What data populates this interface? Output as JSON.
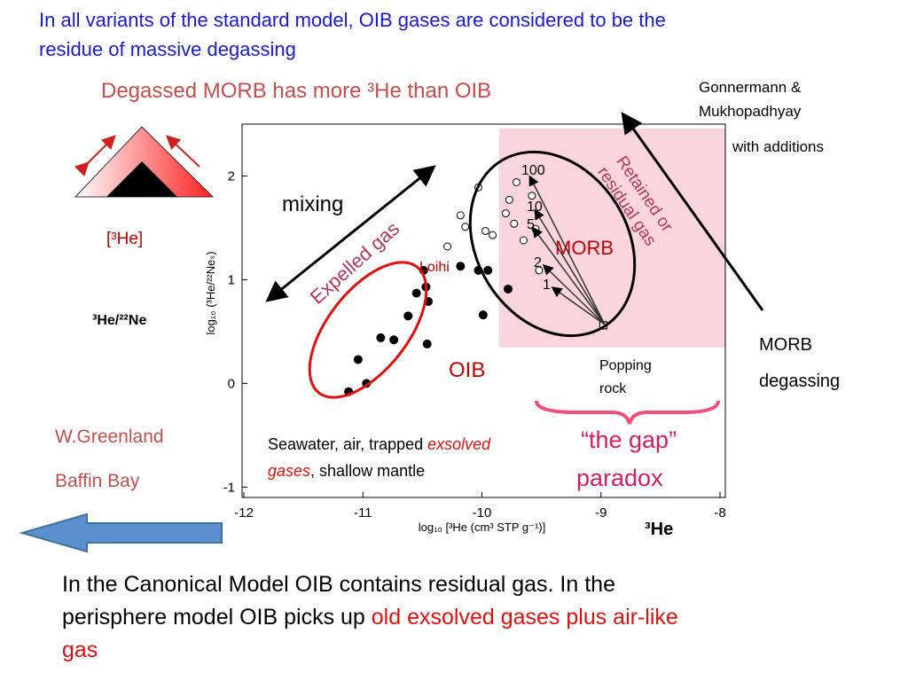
{
  "header": {
    "title_lines": [
      "In all variants of the standard model, OIB gases are considered to be the",
      "residue of massive degassing"
    ],
    "heading": "Degassed MORB has more ³He than OIB",
    "citation": [
      "Gonnermann &",
      "Mukhopadhyay"
    ],
    "citation_note": "with additions"
  },
  "icon": {
    "x_label": "[³He]",
    "y_label": "³He/²²Ne"
  },
  "annotations": {
    "mixing": "mixing",
    "expelled": "Expelled gas",
    "retained": [
      "Retained or",
      "residual gas"
    ],
    "morb": "MORB",
    "loihi": "Loihi",
    "oib": "OIB",
    "popping_rock": [
      "Popping",
      "rock"
    ],
    "morb_degassing": [
      "MORB",
      "degassing"
    ],
    "locations": [
      "W.Greenland",
      "Baffin Bay"
    ],
    "sources": {
      "line1": [
        "Seawater, air, trapped ",
        "exsolved"
      ],
      "line2": [
        "gases",
        ", shallow mantle"
      ]
    },
    "gap": [
      "“the gap”",
      "paradox"
    ],
    "he3": "³He"
  },
  "chart_data": {
    "type": "scatter",
    "xlabel": "log₁₀ [³He (cm³ STP g⁻¹)]",
    "ylabel": "log₁₀ (³He/²²Neₛ)",
    "xlim": [
      -12,
      -8
    ],
    "ylim": [
      -1.1,
      2.5
    ],
    "xticks": [
      -12,
      -11,
      -10,
      -9,
      -8
    ],
    "yticks": [
      -1,
      0,
      1,
      2
    ],
    "series": [
      {
        "marker": "filled",
        "color": "#000000",
        "x": [
          -11.12,
          -11.04,
          -10.97,
          -10.85,
          -10.74,
          -10.62,
          -10.55,
          -10.47,
          -10.45,
          -10.49,
          -10.46,
          -10.18,
          -10.03,
          -9.99,
          -9.95,
          -9.78
        ],
        "values": [
          -0.08,
          0.23,
          0.0,
          0.44,
          0.42,
          0.65,
          0.87,
          0.93,
          0.79,
          1.09,
          0.38,
          1.13,
          1.09,
          0.66,
          1.09,
          0.91
        ]
      },
      {
        "marker": "open",
        "color": "#000000",
        "x": [
          -10.29,
          -10.18,
          -10.03,
          -9.91,
          -9.8,
          -9.73,
          -9.77,
          -9.71,
          -9.58,
          -9.55,
          -9.65,
          -9.52,
          -9.97,
          -10.14
        ],
        "values": [
          1.32,
          1.62,
          1.89,
          1.43,
          1.64,
          1.54,
          1.77,
          1.94,
          1.81,
          1.49,
          1.38,
          1.09,
          1.47,
          1.51
        ]
      },
      {
        "marker": "square",
        "color": "#000000",
        "x": [
          -8.98
        ],
        "values": [
          0.56
        ]
      }
    ],
    "curve_labels": [
      "100",
      "10",
      "5",
      "2",
      "1"
    ]
  },
  "footer": {
    "lines": [
      [
        "In the Canonical Model OIB contains residual gas. In the"
      ],
      [
        "perisphere  model OIB picks up ",
        "old exsolved gases plus air-like"
      ],
      [
        "gas"
      ]
    ]
  }
}
